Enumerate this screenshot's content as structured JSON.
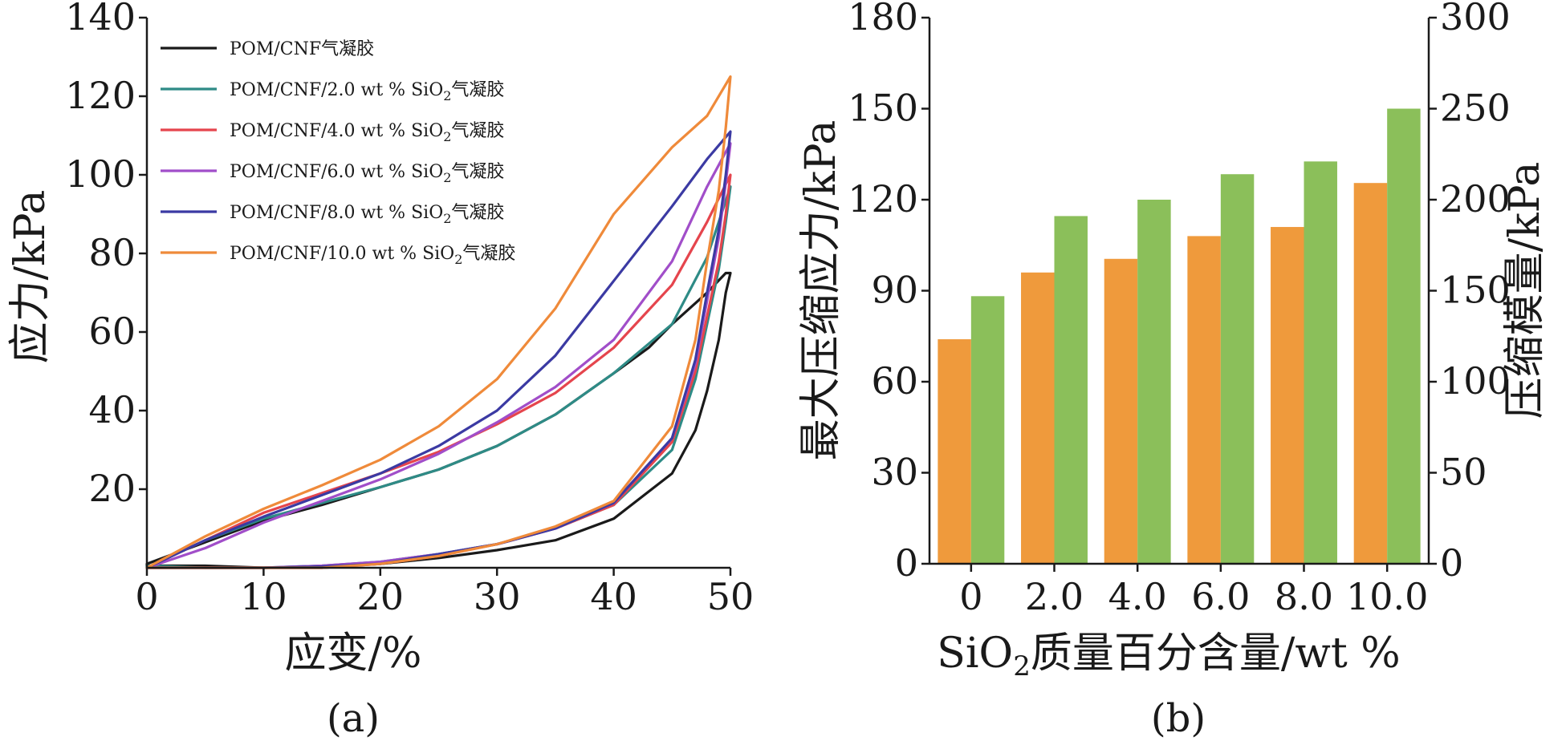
{
  "chart_data": [
    {
      "type": "line",
      "panel_label": "(a)",
      "xlabel": "应变/%",
      "ylabel": "应力/kPa",
      "xlim": [
        0,
        50
      ],
      "ylim": [
        0,
        140
      ],
      "x_ticks": [
        0,
        10,
        20,
        30,
        40,
        50
      ],
      "y_ticks": [
        20,
        40,
        60,
        80,
        100,
        120,
        140
      ],
      "grid": false,
      "legend_position": "top-left",
      "series": [
        {
          "name": "POM/CNF气凝胶",
          "color": "#1a1a1a",
          "points": [
            [
              0,
              1
            ],
            [
              5,
              6.5
            ],
            [
              10,
              12
            ],
            [
              15,
              16
            ],
            [
              20,
              20.5
            ],
            [
              25,
              25
            ],
            [
              30,
              31
            ],
            [
              35,
              39
            ],
            [
              40,
              49.5
            ],
            [
              43,
              56
            ],
            [
              45,
              62
            ],
            [
              48,
              70
            ],
            [
              49.6,
              75
            ],
            [
              50,
              75
            ],
            [
              49.6,
              70
            ],
            [
              49,
              58
            ],
            [
              48,
              45
            ],
            [
              47,
              35
            ],
            [
              45,
              24
            ],
            [
              40,
              12.5
            ],
            [
              35,
              7
            ],
            [
              30,
              4.5
            ],
            [
              25,
              2.5
            ],
            [
              20,
              1
            ],
            [
              15,
              0.2
            ],
            [
              10,
              0
            ],
            [
              5,
              0.5
            ],
            [
              0,
              0.5
            ]
          ]
        },
        {
          "name": "POM/CNF/2.0 wt % SiO₂气凝胶",
          "color": "#2e8b86",
          "points": [
            [
              0,
              0
            ],
            [
              5,
              7
            ],
            [
              10,
              12.5
            ],
            [
              15,
              16.5
            ],
            [
              20,
              20.5
            ],
            [
              25,
              25
            ],
            [
              30,
              31
            ],
            [
              35,
              39
            ],
            [
              40,
              49.5
            ],
            [
              45,
              62
            ],
            [
              48,
              79
            ],
            [
              50,
              97
            ],
            [
              49.6,
              88
            ],
            [
              49,
              76
            ],
            [
              48,
              62
            ],
            [
              47,
              48
            ],
            [
              45,
              30
            ],
            [
              40,
              16
            ],
            [
              35,
              10
            ],
            [
              30,
              6
            ],
            [
              25,
              3.5
            ],
            [
              20,
              1.5
            ],
            [
              15,
              0.5
            ],
            [
              10,
              0
            ],
            [
              5,
              0
            ],
            [
              0,
              0.5
            ]
          ]
        },
        {
          "name": "POM/CNF/4.0 wt % SiO₂气凝胶",
          "color": "#e5454d",
          "points": [
            [
              0,
              0
            ],
            [
              5,
              7
            ],
            [
              10,
              14
            ],
            [
              15,
              19
            ],
            [
              20,
              24
            ],
            [
              25,
              29.5
            ],
            [
              30,
              36.5
            ],
            [
              35,
              44.5
            ],
            [
              40,
              56
            ],
            [
              45,
              72
            ],
            [
              48,
              88
            ],
            [
              50,
              100
            ],
            [
              49.6,
              90
            ],
            [
              49,
              78
            ],
            [
              48,
              64
            ],
            [
              47,
              50
            ],
            [
              45,
              32
            ],
            [
              40,
              16
            ],
            [
              35,
              10
            ],
            [
              30,
              6
            ],
            [
              25,
              3
            ],
            [
              20,
              1
            ],
            [
              15,
              0
            ],
            [
              10,
              0
            ],
            [
              5,
              0
            ],
            [
              0,
              0
            ]
          ]
        },
        {
          "name": "POM/CNF/6.0 wt % SiO₂气凝胶",
          "color": "#a14ec9",
          "points": [
            [
              0,
              0
            ],
            [
              5,
              5
            ],
            [
              10,
              11.5
            ],
            [
              15,
              17
            ],
            [
              20,
              22.5
            ],
            [
              25,
              29
            ],
            [
              30,
              37
            ],
            [
              35,
              46
            ],
            [
              40,
              58
            ],
            [
              45,
              78
            ],
            [
              48,
              97
            ],
            [
              50,
              108
            ],
            [
              49.6,
              98
            ],
            [
              49,
              84
            ],
            [
              48,
              68
            ],
            [
              47,
              52
            ],
            [
              45,
              33
            ],
            [
              40,
              16.5
            ],
            [
              35,
              10
            ],
            [
              30,
              6
            ],
            [
              25,
              3.5
            ],
            [
              20,
              1.5
            ],
            [
              15,
              0.5
            ],
            [
              10,
              0
            ],
            [
              5,
              0
            ],
            [
              0,
              0
            ]
          ]
        },
        {
          "name": "POM/CNF/8.0 wt % SiO₂气凝胶",
          "color": "#3b3aa3",
          "points": [
            [
              0,
              0
            ],
            [
              5,
              7
            ],
            [
              10,
              13
            ],
            [
              15,
              18.5
            ],
            [
              20,
              24
            ],
            [
              25,
              31
            ],
            [
              30,
              40
            ],
            [
              35,
              54
            ],
            [
              40,
              73
            ],
            [
              45,
              92
            ],
            [
              48,
              104
            ],
            [
              50,
              111
            ],
            [
              49.6,
              100
            ],
            [
              49,
              86
            ],
            [
              48,
              70
            ],
            [
              47,
              53
            ],
            [
              45,
              33
            ],
            [
              40,
              16.5
            ],
            [
              35,
              10
            ],
            [
              30,
              6
            ],
            [
              25,
              3.5
            ],
            [
              20,
              1
            ],
            [
              15,
              0.3
            ],
            [
              10,
              0
            ],
            [
              5,
              0
            ],
            [
              0,
              0
            ]
          ]
        },
        {
          "name": "POM/CNF/10.0 wt % SiO₂气凝胶",
          "color": "#ef8a3a",
          "points": [
            [
              0,
              0
            ],
            [
              5,
              8
            ],
            [
              10,
              15
            ],
            [
              15,
              21
            ],
            [
              20,
              27.5
            ],
            [
              25,
              36
            ],
            [
              30,
              48
            ],
            [
              35,
              66
            ],
            [
              40,
              90
            ],
            [
              45,
              107
            ],
            [
              48,
              115
            ],
            [
              50,
              125
            ],
            [
              49.6,
              112
            ],
            [
              49,
              96
            ],
            [
              48,
              78
            ],
            [
              47,
              58
            ],
            [
              45,
              36
            ],
            [
              40,
              17
            ],
            [
              35,
              10.5
            ],
            [
              30,
              6
            ],
            [
              25,
              3
            ],
            [
              20,
              1
            ],
            [
              15,
              0
            ],
            [
              10,
              0
            ],
            [
              5,
              0
            ],
            [
              0,
              0
            ]
          ]
        }
      ]
    },
    {
      "type": "bar",
      "panel_label": "(b)",
      "xlabel_pre": "SiO",
      "xlabel_sub": "2",
      "xlabel_post": "质量百分含量/wt %",
      "ylabel": "最大压缩应力/kPa",
      "ylabel_right": "压缩模量/kPa",
      "categories": [
        "0",
        "2.0",
        "4.0",
        "6.0",
        "8.0",
        "10.0"
      ],
      "ylim": [
        0,
        180
      ],
      "y_ticks": [
        0,
        30,
        60,
        90,
        120,
        150,
        180
      ],
      "ylim_right": [
        0,
        300
      ],
      "y_ticks_right": [
        0,
        50,
        100,
        150,
        200,
        250,
        300
      ],
      "grid": false,
      "series": [
        {
          "name": "最大压缩应力",
          "axis": "left",
          "color": "#ef9a3c",
          "values": [
            74,
            96,
            100.5,
            108,
            111,
            125.5
          ]
        },
        {
          "name": "压缩模量",
          "axis": "right",
          "color": "#8bbf5a",
          "values": [
            147,
            191,
            200,
            214,
            221,
            250
          ]
        }
      ]
    }
  ]
}
